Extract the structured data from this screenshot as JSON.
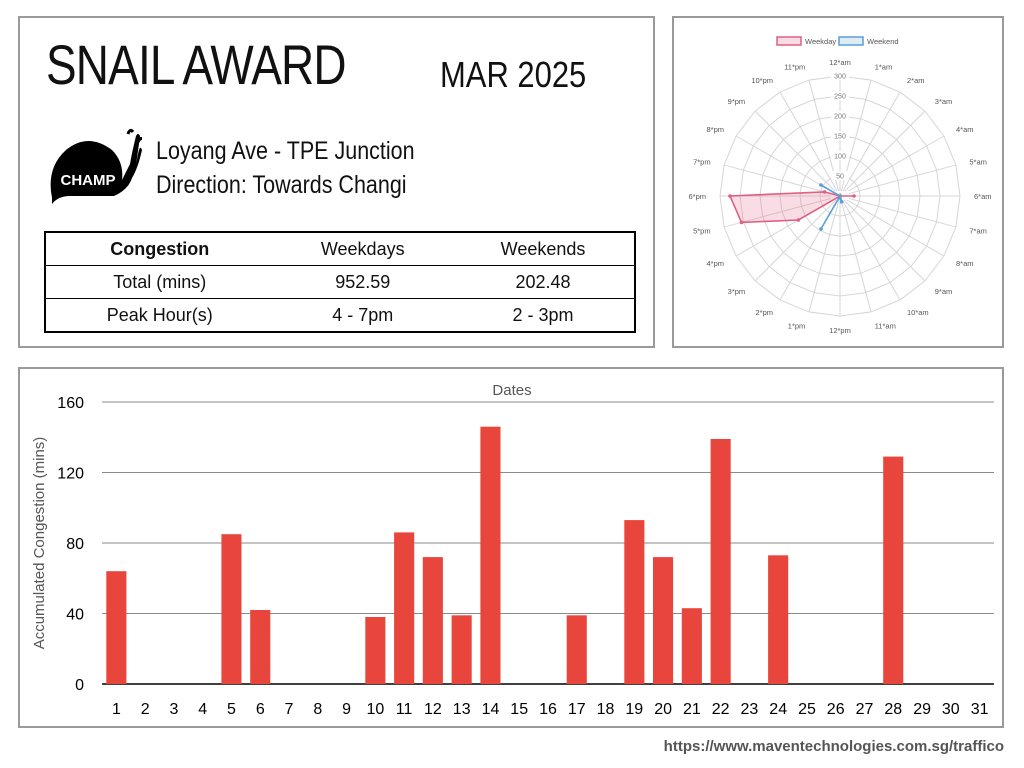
{
  "award": {
    "title": "SNAIL AWARD",
    "month": "MAR 2025",
    "badge": "CHAMP",
    "location": "Loyang Ave - TPE Junction",
    "direction": "Direction: Towards Changi",
    "badge_icon": "snail-icon"
  },
  "stats": {
    "headers": [
      "Congestion",
      "Weekdays",
      "Weekends"
    ],
    "rows": [
      [
        "Total (mins)",
        "952.59",
        "202.48"
      ],
      [
        "Peak Hour(s)",
        "4 - 7pm",
        "2 - 3pm"
      ]
    ]
  },
  "footer": {
    "url": "https://www.maventechnologies.com.sg/traffico"
  },
  "colors": {
    "bar": "#e8463c",
    "weekday": "#e06080",
    "weekend": "#5a9fd8",
    "panel_border": "#9a9a9a"
  },
  "chart_data": [
    {
      "type": "radar",
      "legend": [
        "Weekday",
        "Weekend"
      ],
      "legend_position": "top",
      "categories": [
        "12*am",
        "1*am",
        "2*am",
        "3*am",
        "4*am",
        "5*am",
        "6*am",
        "7*am",
        "8*am",
        "9*am",
        "10*am",
        "11*am",
        "12*pm",
        "1*pm",
        "2*pm",
        "3*pm",
        "4*pm",
        "5*pm",
        "6*pm",
        "7*pm",
        "8*pm",
        "9*pm",
        "10*pm",
        "11*pm"
      ],
      "rlim": [
        0,
        300
      ],
      "r_ticks": [
        0,
        50,
        100,
        150,
        200,
        250,
        300
      ],
      "series": [
        {
          "name": "Weekday",
          "values": [
            0,
            0,
            0,
            0,
            0,
            0,
            35,
            0,
            0,
            0,
            0,
            0,
            0,
            0,
            0,
            0,
            120,
            255,
            275,
            40,
            0,
            0,
            0,
            0
          ]
        },
        {
          "name": "Weekend",
          "values": [
            0,
            0,
            0,
            0,
            0,
            0,
            0,
            0,
            0,
            0,
            0,
            15,
            5,
            0,
            95,
            0,
            0,
            0,
            0,
            0,
            55,
            0,
            0,
            0
          ]
        }
      ]
    },
    {
      "type": "bar",
      "title": "Dates",
      "xlabel": "",
      "ylabel": "Accumulated Congestion (mins)",
      "ylim": [
        0,
        160
      ],
      "y_ticks": [
        0,
        40,
        80,
        120,
        160
      ],
      "grid": true,
      "categories": [
        "1",
        "2",
        "3",
        "4",
        "5",
        "6",
        "7",
        "8",
        "9",
        "10",
        "11",
        "12",
        "13",
        "14",
        "15",
        "16",
        "17",
        "18",
        "19",
        "20",
        "21",
        "22",
        "23",
        "24",
        "25",
        "26",
        "27",
        "28",
        "29",
        "30",
        "31"
      ],
      "values": [
        64,
        0,
        0,
        0,
        85,
        42,
        0,
        0,
        0,
        38,
        86,
        72,
        39,
        146,
        0,
        0,
        39,
        0,
        93,
        72,
        43,
        139,
        0,
        73,
        0,
        0,
        0,
        129,
        0,
        0,
        0
      ]
    }
  ]
}
